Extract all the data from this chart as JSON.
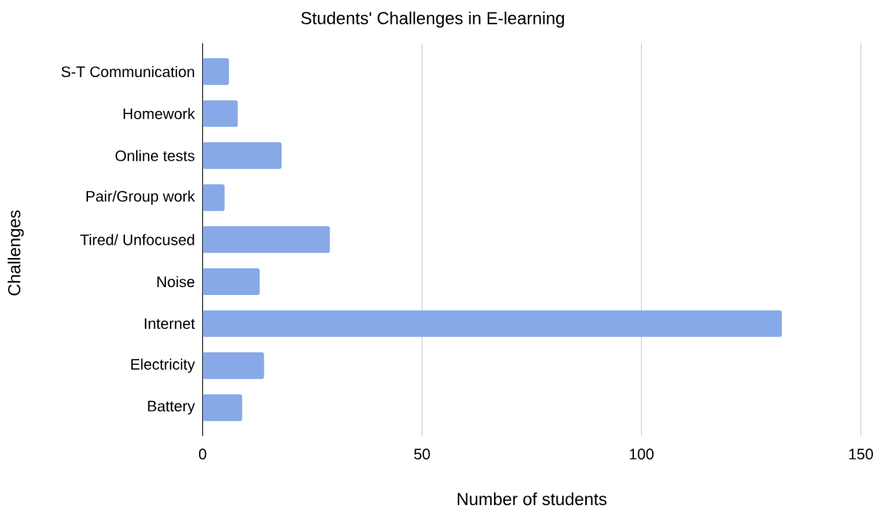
{
  "chart_data": {
    "type": "bar",
    "orientation": "horizontal",
    "title": "Students' Challenges in E-learning",
    "xlabel": "Number of students",
    "ylabel": "Challenges",
    "categories": [
      "S-T Communication",
      "Homework",
      "Online tests",
      "Pair/Group work",
      "Tired/ Unfocused",
      "Noise",
      "Internet",
      "Electricity",
      "Battery"
    ],
    "values": [
      6,
      8,
      18,
      5,
      29,
      13,
      132,
      14,
      9
    ],
    "color": "#87a9e8",
    "xlim": [
      0,
      150
    ],
    "xticks": [
      0,
      50,
      100,
      150
    ],
    "grid": "x"
  }
}
